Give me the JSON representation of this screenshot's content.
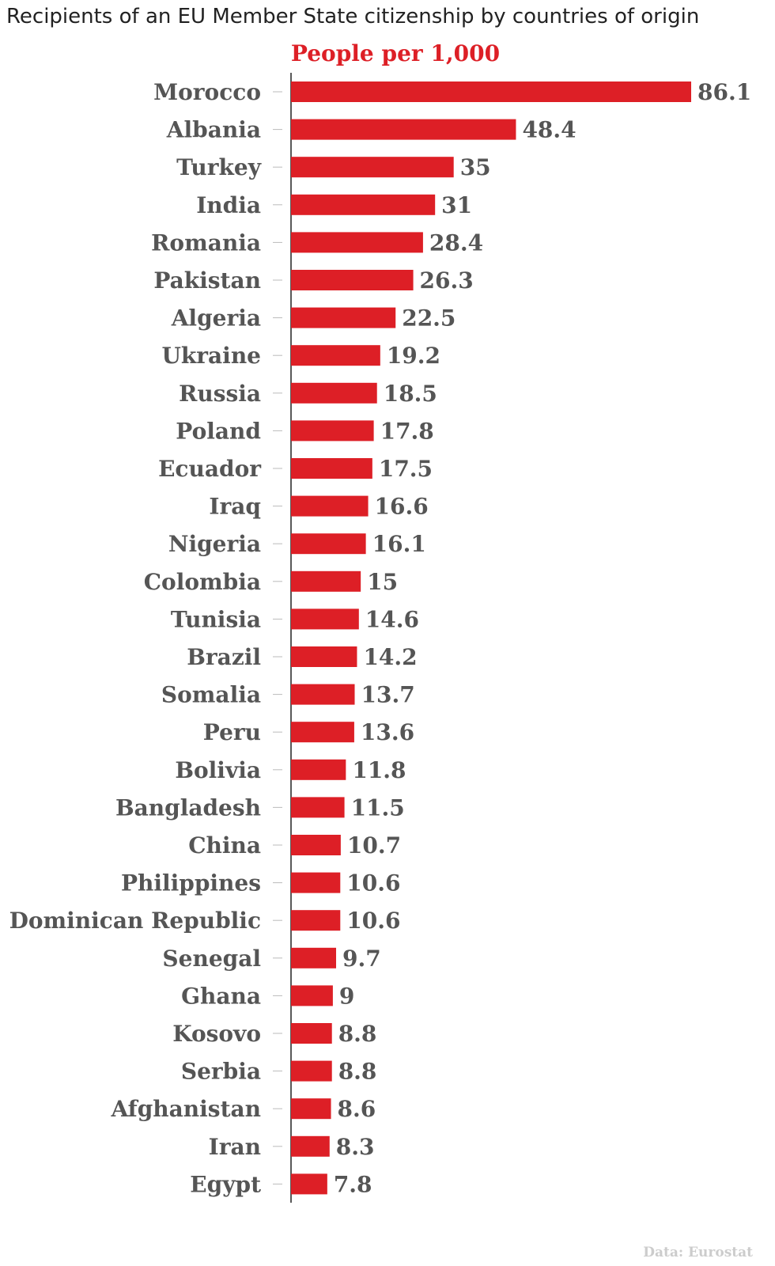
{
  "title": "Recipients of an EU Member State citizenship by countries of origin",
  "colors": {
    "bar": "#dd1f26",
    "label": "#555555",
    "axis": "#222222",
    "tick": "#bbbbbb",
    "source": "#cccccc"
  },
  "chart_data": {
    "type": "bar",
    "orientation": "horizontal",
    "subtitle": "People per 1,000",
    "source": "Data: Eurostat",
    "xlim": [
      0,
      86.1
    ],
    "grid": false,
    "categories": [
      "Morocco",
      "Albania",
      "Turkey",
      "India",
      "Romania",
      "Pakistan",
      "Algeria",
      "Ukraine",
      "Russia",
      "Poland",
      "Ecuador",
      "Iraq",
      "Nigeria",
      "Colombia",
      "Tunisia",
      "Brazil",
      "Somalia",
      "Peru",
      "Bolivia",
      "Bangladesh",
      "China",
      "Philippines",
      "Dominican Republic",
      "Senegal",
      "Ghana",
      "Kosovo",
      "Serbia",
      "Afghanistan",
      "Iran",
      "Egypt"
    ],
    "values": [
      86.1,
      48.4,
      35,
      31,
      28.4,
      26.3,
      22.5,
      19.2,
      18.5,
      17.8,
      17.5,
      16.6,
      16.1,
      15,
      14.6,
      14.2,
      13.7,
      13.6,
      11.8,
      11.5,
      10.7,
      10.6,
      10.6,
      9.7,
      9,
      8.8,
      8.8,
      8.6,
      8.3,
      7.8
    ],
    "value_labels": [
      "86.1",
      "48.4",
      "35",
      "31",
      "28.4",
      "26.3",
      "22.5",
      "19.2",
      "18.5",
      "17.8",
      "17.5",
      "16.6",
      "16.1",
      "15",
      "14.6",
      "14.2",
      "13.7",
      "13.6",
      "11.8",
      "11.5",
      "10.7",
      "10.6",
      "10.6",
      "9.7",
      "9",
      "8.8",
      "8.8",
      "8.6",
      "8.3",
      "7.8"
    ]
  }
}
